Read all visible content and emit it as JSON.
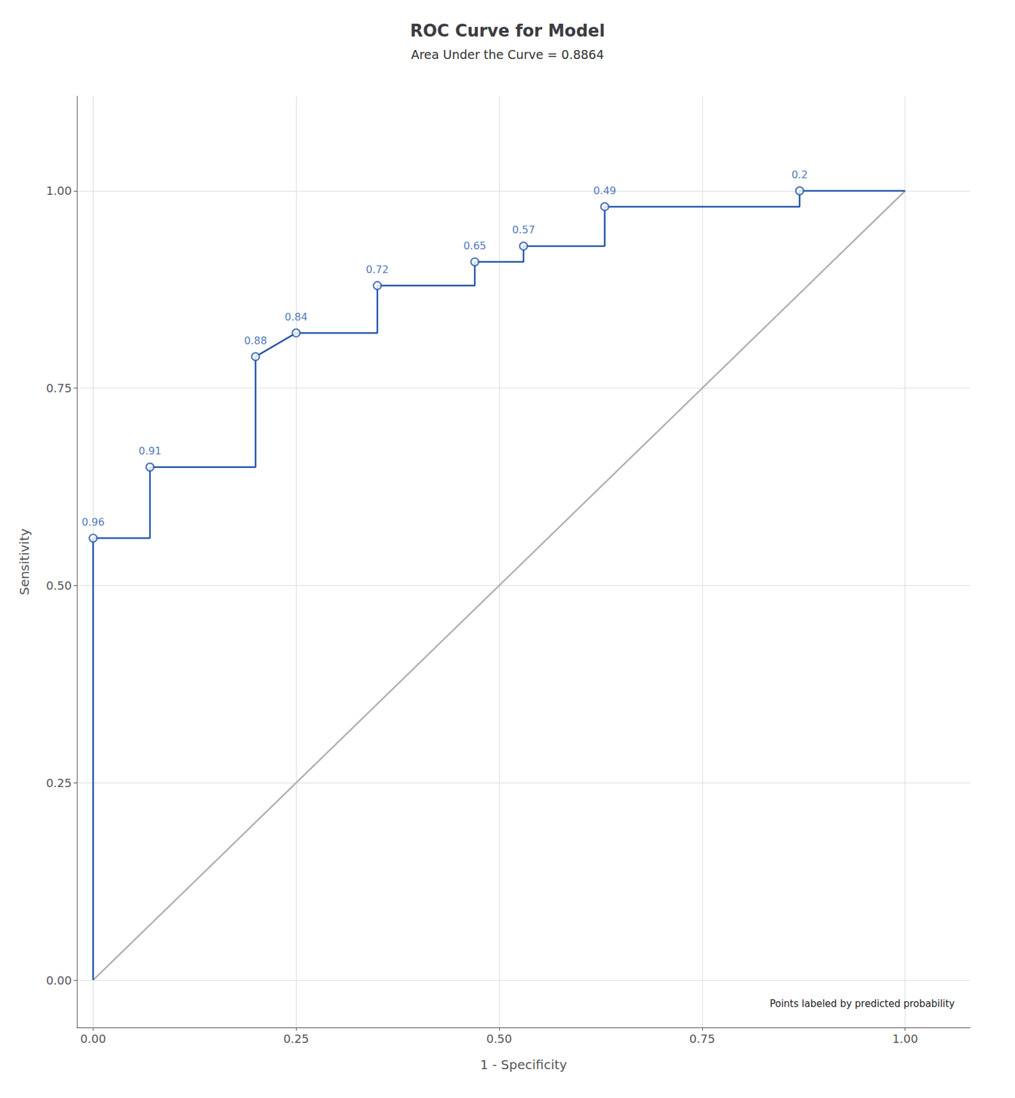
{
  "chart_data": {
    "type": "line",
    "title": "ROC Curve for Model",
    "subtitle": "Area Under the Curve = 0.8864",
    "xlabel": "1 - Specificity",
    "ylabel": "Sensitivity",
    "annotation": "Points labeled by predicted probability",
    "xlim": [
      -0.02,
      1.08
    ],
    "ylim": [
      -0.06,
      1.12
    ],
    "xticks": [
      {
        "value": 0,
        "label": "0.00"
      },
      {
        "value": 0.25,
        "label": "0.25"
      },
      {
        "value": 0.5,
        "label": "0.50"
      },
      {
        "value": 0.75,
        "label": "0.75"
      },
      {
        "value": 1,
        "label": "1.00"
      }
    ],
    "yticks": [
      {
        "value": 0,
        "label": "0.00"
      },
      {
        "value": 0.25,
        "label": "0.25"
      },
      {
        "value": 0.5,
        "label": "0.50"
      },
      {
        "value": 0.75,
        "label": "0.75"
      },
      {
        "value": 1,
        "label": "1.00"
      }
    ],
    "grid": true,
    "series": [
      {
        "type": "line",
        "color": "#b0b0b0",
        "x": [
          0,
          1
        ],
        "values": [
          0,
          1
        ]
      },
      {
        "type": "line",
        "color": "#2255aa",
        "x": [
          0.0,
          0.0,
          0.07,
          0.07,
          0.2,
          0.2,
          0.25,
          0.35,
          0.35,
          0.47,
          0.47,
          0.53,
          0.53,
          0.63,
          0.63,
          0.87,
          0.87,
          1.0
        ],
        "values": [
          0.0,
          0.56,
          0.56,
          0.65,
          0.65,
          0.79,
          0.82,
          0.82,
          0.88,
          0.88,
          0.91,
          0.91,
          0.93,
          0.93,
          0.98,
          0.98,
          1.0,
          1.0
        ]
      },
      {
        "type": "scatter",
        "color": "#2255aa",
        "marker": "circle",
        "x": [
          0.0,
          0.07,
          0.2,
          0.25,
          0.35,
          0.47,
          0.53,
          0.63,
          0.87
        ],
        "values": [
          0.56,
          0.65,
          0.79,
          0.82,
          0.88,
          0.91,
          0.93,
          0.98,
          1.0
        ],
        "labels": [
          "0.96",
          "0.91",
          "0.88",
          "0.84",
          "0.72",
          "0.65",
          "0.57",
          "0.49",
          "0.2"
        ]
      }
    ]
  }
}
